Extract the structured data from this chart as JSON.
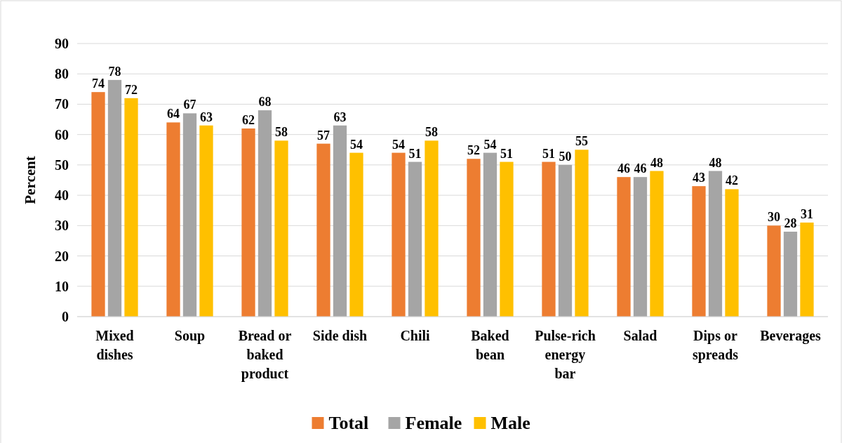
{
  "chart_data": {
    "type": "bar",
    "ylabel": "Percent",
    "categories": [
      "Mixed dishes",
      "Soup",
      "Bread or baked product",
      "Side dish",
      "Chili",
      "Baked bean",
      "Pulse-rich energy bar",
      "Salad",
      "Dips or spreads",
      "Beverages"
    ],
    "series": [
      {
        "name": "Total",
        "color": "#ed7d31",
        "values": [
          74,
          64,
          62,
          57,
          54,
          52,
          51,
          46,
          43,
          30
        ]
      },
      {
        "name": "Female",
        "color": "#a5a5a5",
        "values": [
          78,
          67,
          68,
          63,
          51,
          54,
          50,
          46,
          48,
          28
        ]
      },
      {
        "name": "Male",
        "color": "#ffc000",
        "values": [
          72,
          63,
          58,
          54,
          58,
          51,
          55,
          48,
          42,
          31
        ]
      }
    ],
    "ylim": [
      0,
      90
    ],
    "yticks": [
      0,
      10,
      20,
      30,
      40,
      50,
      60,
      70,
      80,
      90
    ],
    "grid": "y",
    "legend": "bottom",
    "data_labels": true
  }
}
